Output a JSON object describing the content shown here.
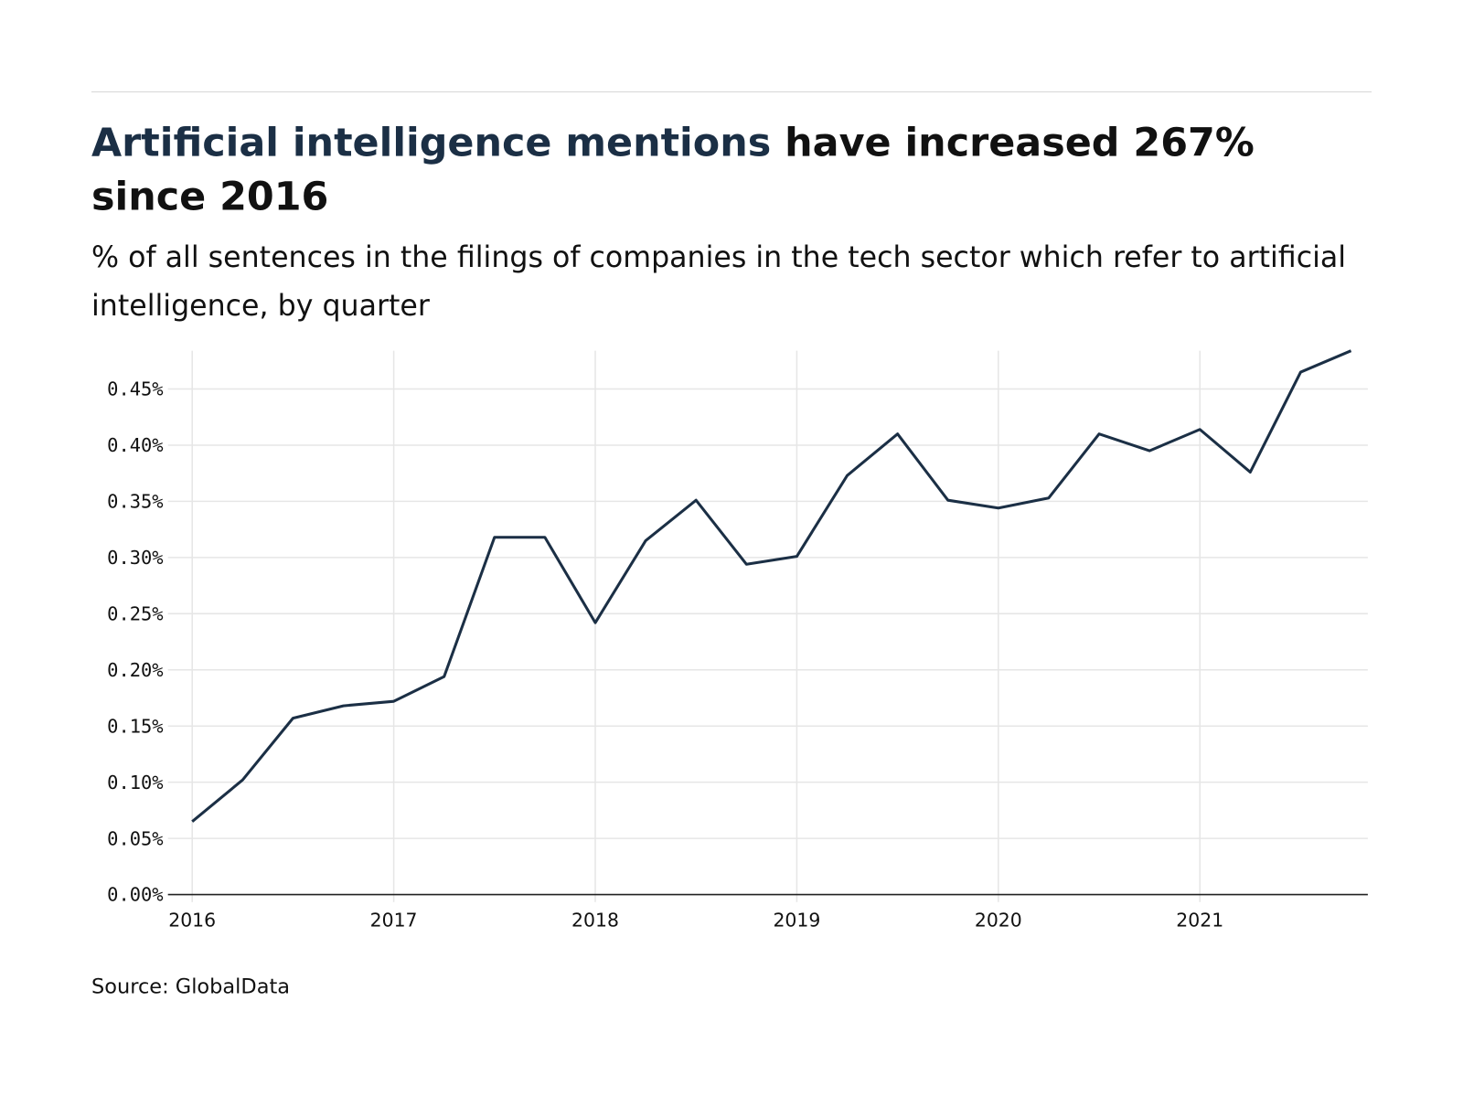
{
  "header": {
    "title_highlight": "Artificial intelligence mentions",
    "title_rest": " have increased 267% since 2016",
    "subtitle": "% of all sentences in the filings of companies in the tech sector which refer to artificial intelligence, by quarter"
  },
  "footer": {
    "source": "Source: GlobalData"
  },
  "chart_data": {
    "type": "line",
    "title": "Artificial intelligence mentions have increased 267% since 2016",
    "subtitle": "% of all sentences in the filings of companies in the tech sector which refer to artificial intelligence, by quarter",
    "line_color": "#1b2f45",
    "grid": true,
    "xlim": [
      2016,
      2021.75
    ],
    "ylim": [
      0,
      0.48
    ],
    "yticks": [
      0,
      0.05,
      0.1,
      0.15,
      0.2,
      0.25,
      0.3,
      0.35,
      0.4,
      0.45
    ],
    "ytick_labels": [
      "0.00%",
      "0.05%",
      "0.10%",
      "0.15%",
      "0.20%",
      "0.25%",
      "0.30%",
      "0.35%",
      "0.40%",
      "0.45%"
    ],
    "xticks": [
      2016,
      2017,
      2018,
      2019,
      2020,
      2021
    ],
    "xtick_labels": [
      "2016",
      "2017",
      "2018",
      "2019",
      "2020",
      "2021"
    ],
    "x": [
      "2016 Q1",
      "2016 Q2",
      "2016 Q3",
      "2016 Q4",
      "2017 Q1",
      "2017 Q2",
      "2017 Q3",
      "2017 Q4",
      "2018 Q1",
      "2018 Q2",
      "2018 Q3",
      "2018 Q4",
      "2019 Q1",
      "2019 Q2",
      "2019 Q3",
      "2019 Q4",
      "2020 Q1",
      "2020 Q2",
      "2020 Q3",
      "2020 Q4",
      "2021 Q1",
      "2021 Q2",
      "2021 Q3",
      "2021 Q4"
    ],
    "values": [
      0.065,
      0.102,
      0.157,
      0.168,
      0.172,
      0.194,
      0.318,
      0.318,
      0.242,
      0.315,
      0.351,
      0.294,
      0.301,
      0.373,
      0.41,
      0.351,
      0.344,
      0.353,
      0.41,
      0.395,
      0.414,
      0.376,
      0.465,
      0.484
    ]
  }
}
